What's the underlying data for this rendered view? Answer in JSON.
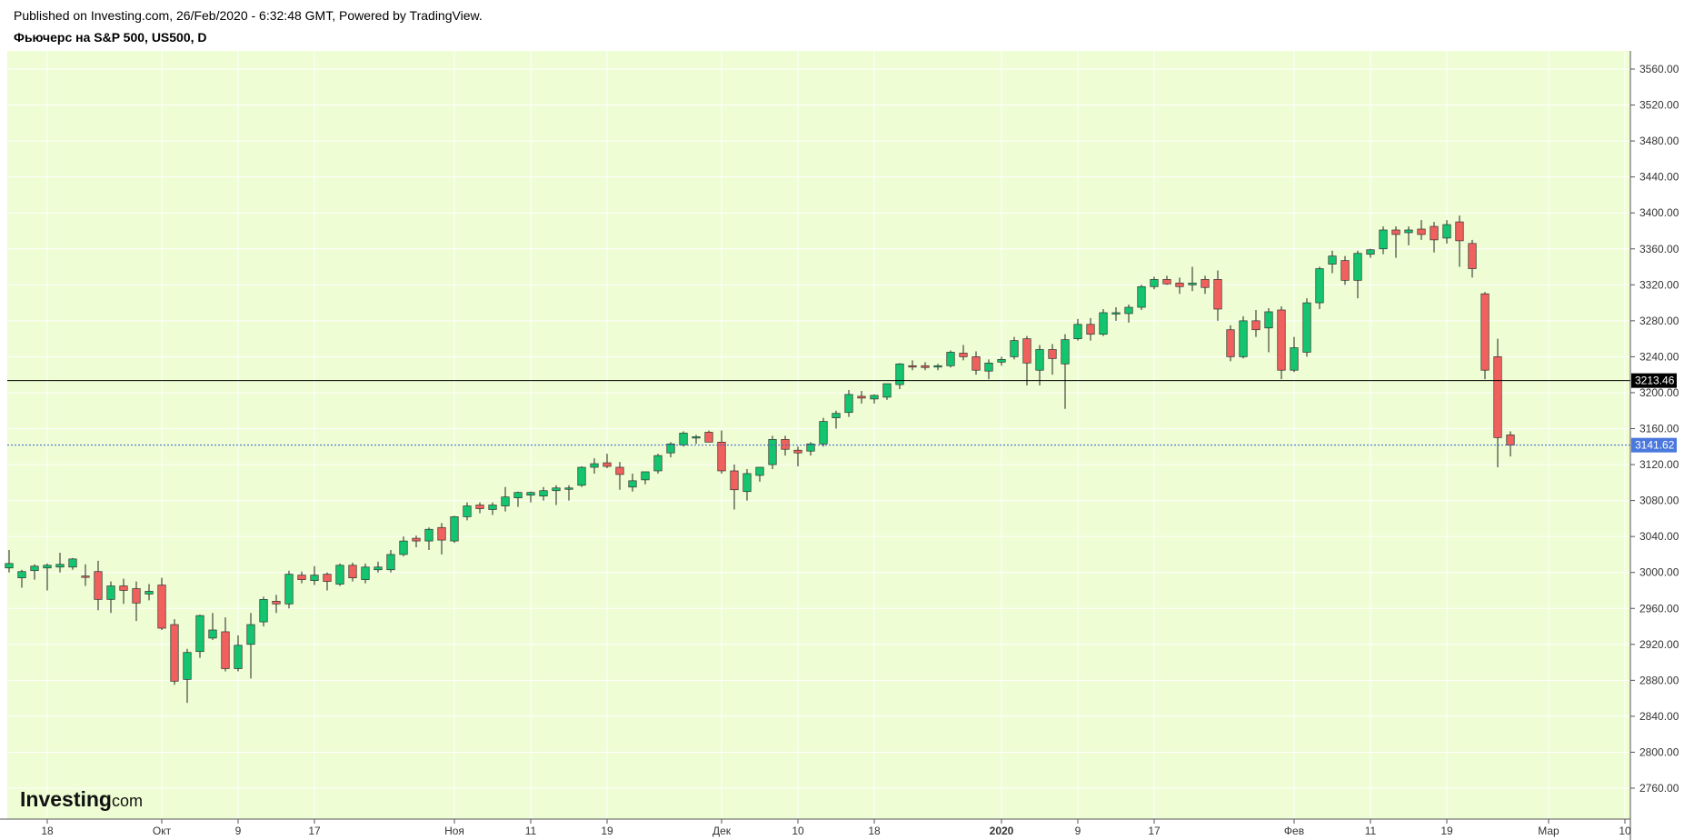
{
  "header": {
    "published": "Published on Investing.com, 26/Feb/2020 - 6:32:48 GMT, Powered by TradingView.",
    "symbol": "Фьючерс на S&P 500, US500, D"
  },
  "logo": {
    "main": "Investing",
    "domain": ".com"
  },
  "colors": {
    "background": "#eefdd3",
    "up": "#14c56f",
    "down": "#f0605d",
    "wick": "#222222",
    "last_price_bg": "#4a78dc",
    "level_bg": "#000000"
  },
  "chart_data": {
    "type": "candlestick",
    "title": "Фьючерс на S&P 500, US500, D",
    "ylim": [
      2720,
      3580
    ],
    "y_ticks": [
      "3560.00",
      "3520.00",
      "3480.00",
      "3440.00",
      "3400.00",
      "3360.00",
      "3320.00",
      "3280.00",
      "3240.00",
      "3200.00",
      "3160.00",
      "3120.00",
      "3080.00",
      "3040.00",
      "3000.00",
      "2960.00",
      "2920.00",
      "2880.00",
      "2840.00",
      "2800.00",
      "2760.00"
    ],
    "x_ticks": [
      {
        "label": "18",
        "index": 3,
        "bold": false
      },
      {
        "label": "Окт",
        "index": 12,
        "bold": false
      },
      {
        "label": "9",
        "index": 18,
        "bold": false
      },
      {
        "label": "17",
        "index": 24,
        "bold": false
      },
      {
        "label": "Ноя",
        "index": 35,
        "bold": false
      },
      {
        "label": "11",
        "index": 41,
        "bold": false
      },
      {
        "label": "19",
        "index": 47,
        "bold": false
      },
      {
        "label": "Дек",
        "index": 56,
        "bold": false
      },
      {
        "label": "10",
        "index": 62,
        "bold": false
      },
      {
        "label": "18",
        "index": 68,
        "bold": false
      },
      {
        "label": "2020",
        "index": 78,
        "bold": true
      },
      {
        "label": "9",
        "index": 84,
        "bold": false
      },
      {
        "label": "17",
        "index": 90,
        "bold": false
      },
      {
        "label": "Фев",
        "index": 101,
        "bold": false
      },
      {
        "label": "11",
        "index": 107,
        "bold": false
      },
      {
        "label": "19",
        "index": 113,
        "bold": false
      },
      {
        "label": "Мар",
        "index": 121,
        "bold": false
      },
      {
        "label": "10",
        "index": 127,
        "bold": false
      }
    ],
    "levels": [
      {
        "value": 3213.46,
        "label": "3213.46",
        "style": "solid"
      },
      {
        "value": 3141.62,
        "label": "3141.62",
        "style": "dotted"
      }
    ],
    "candles": [
      {
        "o": 3005,
        "h": 3025,
        "l": 3000,
        "c": 3010
      },
      {
        "o": 2994,
        "h": 3003,
        "l": 2983,
        "c": 3001
      },
      {
        "o": 3002,
        "h": 3009,
        "l": 2992,
        "c": 3007
      },
      {
        "o": 3005,
        "h": 3010,
        "l": 2980,
        "c": 3008
      },
      {
        "o": 3006,
        "h": 3022,
        "l": 3000,
        "c": 3009
      },
      {
        "o": 3006,
        "h": 3016,
        "l": 3003,
        "c": 3015
      },
      {
        "o": 2996,
        "h": 3009,
        "l": 2985,
        "c": 2995
      },
      {
        "o": 3001,
        "h": 3013,
        "l": 2958,
        "c": 2970
      },
      {
        "o": 2970,
        "h": 2990,
        "l": 2955,
        "c": 2985
      },
      {
        "o": 2985,
        "h": 2993,
        "l": 2965,
        "c": 2980
      },
      {
        "o": 2982,
        "h": 2990,
        "l": 2946,
        "c": 2966
      },
      {
        "o": 2976,
        "h": 2987,
        "l": 2969,
        "c": 2979
      },
      {
        "o": 2986,
        "h": 2994,
        "l": 2936,
        "c": 2938
      },
      {
        "o": 2942,
        "h": 2948,
        "l": 2875,
        "c": 2879
      },
      {
        "o": 2881,
        "h": 2915,
        "l": 2855,
        "c": 2911
      },
      {
        "o": 2912,
        "h": 2953,
        "l": 2905,
        "c": 2952
      },
      {
        "o": 2927,
        "h": 2955,
        "l": 2925,
        "c": 2936
      },
      {
        "o": 2934,
        "h": 2950,
        "l": 2890,
        "c": 2893
      },
      {
        "o": 2893,
        "h": 2930,
        "l": 2890,
        "c": 2919
      },
      {
        "o": 2920,
        "h": 2955,
        "l": 2882,
        "c": 2942
      },
      {
        "o": 2945,
        "h": 2973,
        "l": 2940,
        "c": 2970
      },
      {
        "o": 2968,
        "h": 2975,
        "l": 2955,
        "c": 2965
      },
      {
        "o": 2965,
        "h": 3002,
        "l": 2960,
        "c": 2998
      },
      {
        "o": 2997,
        "h": 3001,
        "l": 2988,
        "c": 2992
      },
      {
        "o": 2991,
        "h": 3007,
        "l": 2986,
        "c": 2997
      },
      {
        "o": 2998,
        "h": 3000,
        "l": 2980,
        "c": 2990
      },
      {
        "o": 2987,
        "h": 3010,
        "l": 2985,
        "c": 3008
      },
      {
        "o": 3008,
        "h": 3011,
        "l": 2990,
        "c": 2994
      },
      {
        "o": 2992,
        "h": 3010,
        "l": 2988,
        "c": 3006
      },
      {
        "o": 3003,
        "h": 3012,
        "l": 3000,
        "c": 3006
      },
      {
        "o": 3003,
        "h": 3025,
        "l": 3000,
        "c": 3020
      },
      {
        "o": 3020,
        "h": 3040,
        "l": 3018,
        "c": 3035
      },
      {
        "o": 3038,
        "h": 3041,
        "l": 3028,
        "c": 3035
      },
      {
        "o": 3035,
        "h": 3050,
        "l": 3025,
        "c": 3048
      },
      {
        "o": 3050,
        "h": 3055,
        "l": 3020,
        "c": 3036
      },
      {
        "o": 3035,
        "h": 3063,
        "l": 3033,
        "c": 3062
      },
      {
        "o": 3062,
        "h": 3078,
        "l": 3058,
        "c": 3074
      },
      {
        "o": 3075,
        "h": 3078,
        "l": 3066,
        "c": 3071
      },
      {
        "o": 3070,
        "h": 3078,
        "l": 3064,
        "c": 3075
      },
      {
        "o": 3074,
        "h": 3095,
        "l": 3068,
        "c": 3084
      },
      {
        "o": 3083,
        "h": 3090,
        "l": 3073,
        "c": 3089
      },
      {
        "o": 3086,
        "h": 3090,
        "l": 3078,
        "c": 3089
      },
      {
        "o": 3085,
        "h": 3095,
        "l": 3080,
        "c": 3091
      },
      {
        "o": 3091,
        "h": 3097,
        "l": 3075,
        "c": 3094
      },
      {
        "o": 3093,
        "h": 3097,
        "l": 3080,
        "c": 3094
      },
      {
        "o": 3097,
        "h": 3118,
        "l": 3095,
        "c": 3117
      },
      {
        "o": 3117,
        "h": 3127,
        "l": 3110,
        "c": 3121
      },
      {
        "o": 3122,
        "h": 3132,
        "l": 3116,
        "c": 3118
      },
      {
        "o": 3117,
        "h": 3123,
        "l": 3092,
        "c": 3109
      },
      {
        "o": 3095,
        "h": 3110,
        "l": 3090,
        "c": 3102
      },
      {
        "o": 3103,
        "h": 3112,
        "l": 3098,
        "c": 3112
      },
      {
        "o": 3113,
        "h": 3132,
        "l": 3110,
        "c": 3130
      },
      {
        "o": 3133,
        "h": 3145,
        "l": 3128,
        "c": 3143
      },
      {
        "o": 3142,
        "h": 3157,
        "l": 3140,
        "c": 3155
      },
      {
        "o": 3150,
        "h": 3153,
        "l": 3143,
        "c": 3151
      },
      {
        "o": 3156,
        "h": 3158,
        "l": 3146,
        "c": 3145
      },
      {
        "o": 3145,
        "h": 3158,
        "l": 3110,
        "c": 3113
      },
      {
        "o": 3113,
        "h": 3120,
        "l": 3070,
        "c": 3092
      },
      {
        "o": 3090,
        "h": 3115,
        "l": 3080,
        "c": 3110
      },
      {
        "o": 3108,
        "h": 3117,
        "l": 3101,
        "c": 3117
      },
      {
        "o": 3120,
        "h": 3152,
        "l": 3115,
        "c": 3148
      },
      {
        "o": 3148,
        "h": 3152,
        "l": 3130,
        "c": 3137
      },
      {
        "o": 3136,
        "h": 3140,
        "l": 3118,
        "c": 3133
      },
      {
        "o": 3135,
        "h": 3145,
        "l": 3130,
        "c": 3143
      },
      {
        "o": 3143,
        "h": 3172,
        "l": 3140,
        "c": 3168
      },
      {
        "o": 3172,
        "h": 3180,
        "l": 3160,
        "c": 3177
      },
      {
        "o": 3178,
        "h": 3203,
        "l": 3173,
        "c": 3198
      },
      {
        "o": 3196,
        "h": 3202,
        "l": 3188,
        "c": 3194
      },
      {
        "o": 3193,
        "h": 3198,
        "l": 3188,
        "c": 3197
      },
      {
        "o": 3195,
        "h": 3210,
        "l": 3192,
        "c": 3210
      },
      {
        "o": 3209,
        "h": 3233,
        "l": 3204,
        "c": 3232
      },
      {
        "o": 3230,
        "h": 3236,
        "l": 3225,
        "c": 3229
      },
      {
        "o": 3230,
        "h": 3234,
        "l": 3225,
        "c": 3228
      },
      {
        "o": 3229,
        "h": 3232,
        "l": 3225,
        "c": 3230
      },
      {
        "o": 3230,
        "h": 3247,
        "l": 3228,
        "c": 3245
      },
      {
        "o": 3244,
        "h": 3253,
        "l": 3236,
        "c": 3240
      },
      {
        "o": 3240,
        "h": 3246,
        "l": 3220,
        "c": 3225
      },
      {
        "o": 3224,
        "h": 3237,
        "l": 3215,
        "c": 3233
      },
      {
        "o": 3234,
        "h": 3240,
        "l": 3230,
        "c": 3237
      },
      {
        "o": 3240,
        "h": 3262,
        "l": 3237,
        "c": 3258
      },
      {
        "o": 3260,
        "h": 3263,
        "l": 3208,
        "c": 3233
      },
      {
        "o": 3225,
        "h": 3253,
        "l": 3208,
        "c": 3248
      },
      {
        "o": 3248,
        "h": 3254,
        "l": 3220,
        "c": 3238
      },
      {
        "o": 3232,
        "h": 3265,
        "l": 3182,
        "c": 3259
      },
      {
        "o": 3260,
        "h": 3282,
        "l": 3258,
        "c": 3276
      },
      {
        "o": 3276,
        "h": 3283,
        "l": 3258,
        "c": 3265
      },
      {
        "o": 3265,
        "h": 3293,
        "l": 3263,
        "c": 3289
      },
      {
        "o": 3288,
        "h": 3295,
        "l": 3280,
        "c": 3289
      },
      {
        "o": 3288,
        "h": 3298,
        "l": 3278,
        "c": 3295
      },
      {
        "o": 3295,
        "h": 3320,
        "l": 3292,
        "c": 3318
      },
      {
        "o": 3318,
        "h": 3329,
        "l": 3315,
        "c": 3326
      },
      {
        "o": 3326,
        "h": 3330,
        "l": 3320,
        "c": 3321
      },
      {
        "o": 3322,
        "h": 3328,
        "l": 3310,
        "c": 3318
      },
      {
        "o": 3320,
        "h": 3340,
        "l": 3313,
        "c": 3322
      },
      {
        "o": 3326,
        "h": 3330,
        "l": 3310,
        "c": 3317
      },
      {
        "o": 3326,
        "h": 3336,
        "l": 3280,
        "c": 3293
      },
      {
        "o": 3270,
        "h": 3275,
        "l": 3235,
        "c": 3240
      },
      {
        "o": 3240,
        "h": 3285,
        "l": 3238,
        "c": 3280
      },
      {
        "o": 3280,
        "h": 3292,
        "l": 3262,
        "c": 3270
      },
      {
        "o": 3272,
        "h": 3294,
        "l": 3245,
        "c": 3290
      },
      {
        "o": 3292,
        "h": 3296,
        "l": 3215,
        "c": 3225
      },
      {
        "o": 3225,
        "h": 3262,
        "l": 3223,
        "c": 3250
      },
      {
        "o": 3245,
        "h": 3305,
        "l": 3240,
        "c": 3300
      },
      {
        "o": 3300,
        "h": 3340,
        "l": 3293,
        "c": 3338
      },
      {
        "o": 3343,
        "h": 3358,
        "l": 3333,
        "c": 3352
      },
      {
        "o": 3347,
        "h": 3352,
        "l": 3320,
        "c": 3325
      },
      {
        "o": 3325,
        "h": 3358,
        "l": 3305,
        "c": 3355
      },
      {
        "o": 3354,
        "h": 3360,
        "l": 3350,
        "c": 3359
      },
      {
        "o": 3360,
        "h": 3385,
        "l": 3354,
        "c": 3381
      },
      {
        "o": 3381,
        "h": 3385,
        "l": 3350,
        "c": 3376
      },
      {
        "o": 3378,
        "h": 3385,
        "l": 3364,
        "c": 3381
      },
      {
        "o": 3382,
        "h": 3392,
        "l": 3370,
        "c": 3376
      },
      {
        "o": 3385,
        "h": 3390,
        "l": 3356,
        "c": 3370
      },
      {
        "o": 3372,
        "h": 3392,
        "l": 3366,
        "c": 3387
      },
      {
        "o": 3390,
        "h": 3397,
        "l": 3340,
        "c": 3369
      },
      {
        "o": 3366,
        "h": 3370,
        "l": 3328,
        "c": 3338
      },
      {
        "o": 3310,
        "h": 3312,
        "l": 3215,
        "c": 3225
      },
      {
        "o": 3240,
        "h": 3260,
        "l": 3117,
        "c": 3150
      },
      {
        "o": 3153,
        "h": 3157,
        "l": 3129,
        "c": 3141.62
      }
    ]
  }
}
